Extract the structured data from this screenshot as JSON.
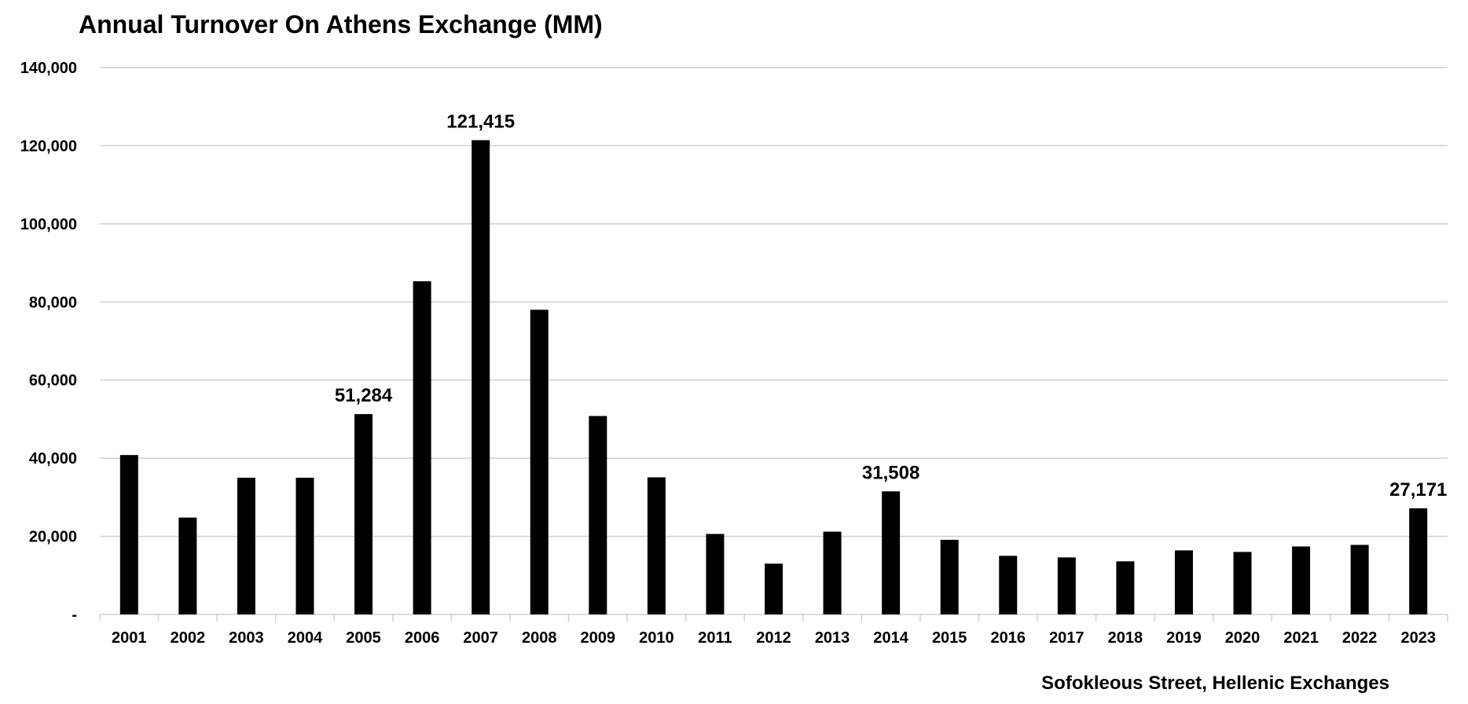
{
  "chart_data": {
    "type": "bar",
    "title": "Annual Turnover On Athens Exchange (MM)",
    "categories": [
      "2001",
      "2002",
      "2003",
      "2004",
      "2005",
      "2006",
      "2007",
      "2008",
      "2009",
      "2010",
      "2011",
      "2012",
      "2013",
      "2014",
      "2015",
      "2016",
      "2017",
      "2018",
      "2019",
      "2020",
      "2021",
      "2022",
      "2023"
    ],
    "values": [
      40800,
      24800,
      35000,
      35000,
      51284,
      85300,
      121415,
      78000,
      50800,
      35100,
      20600,
      13000,
      21200,
      31508,
      19100,
      15000,
      14600,
      13600,
      16400,
      16000,
      17400,
      17800,
      27171
    ],
    "data_labels": [
      {
        "category": "2005",
        "text": "51,284"
      },
      {
        "category": "2007",
        "text": "121,415"
      },
      {
        "category": "2014",
        "text": "31,508"
      },
      {
        "category": "2023",
        "text": "27,171"
      }
    ],
    "y_ticks": [
      "-",
      "20,000",
      "40,000",
      "60,000",
      "80,000",
      "100,000",
      "120,000",
      "140,000"
    ],
    "ylim": [
      0,
      140000
    ],
    "grid": true,
    "legend": "none",
    "bar_color": "#000000",
    "grid_color": "#d0d0d0",
    "source": "Sofokleous Street, Hellenic Exchanges"
  }
}
